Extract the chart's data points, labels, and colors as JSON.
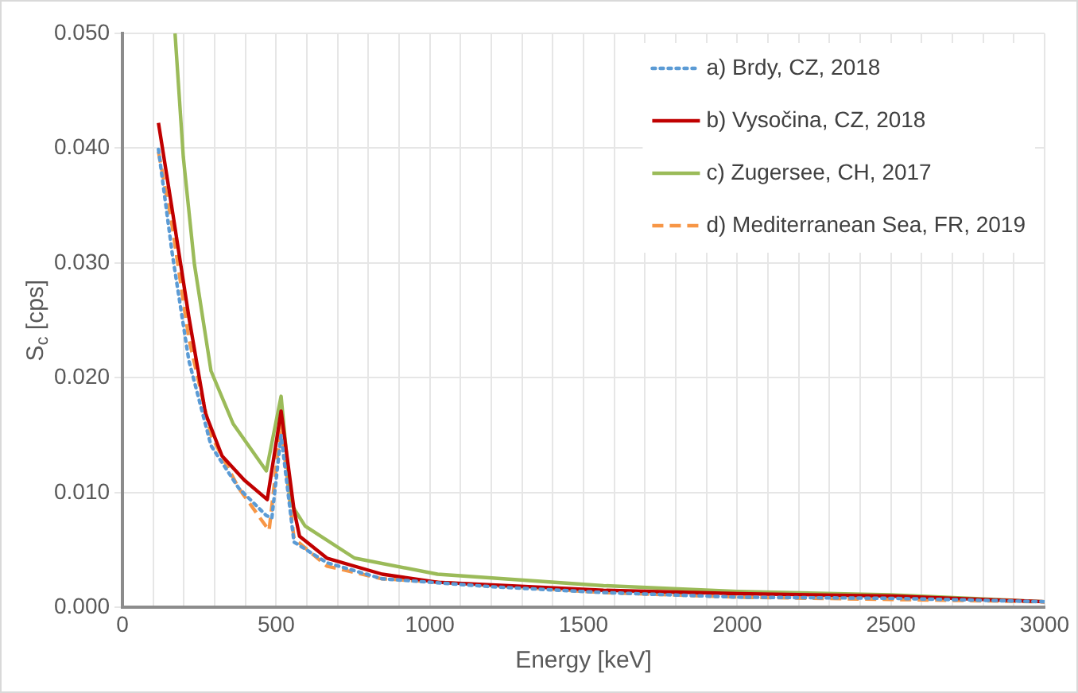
{
  "chart_data": {
    "type": "line",
    "xlabel": "Energy [keV]",
    "ylabel": "S$_{c}$ [cps]",
    "xlim": [
      0,
      3000
    ],
    "xticks": [
      0,
      {
        "value": 100,
        "label": null
      },
      {
        "value": 200,
        "label": null
      },
      {
        "value": 300,
        "label": null
      },
      {
        "value": 400,
        "label": null
      },
      500,
      {
        "value": 600,
        "label": null
      },
      {
        "value": 700,
        "label": null
      },
      {
        "value": 800,
        "label": null
      },
      {
        "value": 900,
        "label": null
      },
      1000,
      {
        "value": 1100,
        "label": null
      },
      {
        "value": 1200,
        "label": null
      },
      {
        "value": 1300,
        "label": null
      },
      {
        "value": 1400,
        "label": null
      },
      1500,
      {
        "value": 1600,
        "label": null
      },
      {
        "value": 1700,
        "label": null
      },
      {
        "value": 1800,
        "label": null
      },
      {
        "value": 1900,
        "label": null
      },
      2000,
      {
        "value": 2100,
        "label": null
      },
      {
        "value": 2200,
        "label": null
      },
      {
        "value": 2300,
        "label": null
      },
      {
        "value": 2400,
        "label": null
      },
      2500,
      {
        "value": 2600,
        "label": null
      },
      {
        "value": 2700,
        "label": null
      },
      {
        "value": 2800,
        "label": null
      },
      {
        "value": 2900,
        "label": null
      },
      3000
    ],
    "ylim": [
      0,
      0.05
    ],
    "yticks": [
      {
        "value": 0,
        "label": "0.000"
      },
      {
        "value": 0.01,
        "label": "0.010"
      },
      {
        "value": 0.02,
        "label": "0.020"
      },
      {
        "value": 0.03,
        "label": "0.030"
      },
      {
        "value": 0.04,
        "label": "0.040"
      },
      {
        "value": 0.05,
        "label": "0.050"
      }
    ],
    "grid": true,
    "legend": "top right",
    "marker": "none",
    "series": [
      {
        "name": "a) Brdy, CZ, 2018",
        "color": "#5b9bd5",
        "line_style": "dotted",
        "x": [
          117,
          162,
          216,
          288,
          378,
          468,
          486,
          516,
          558,
          665,
          845,
          1205,
          1565,
          2000,
          2500,
          3000
        ],
        "values": [
          0.0399,
          0.0308,
          0.0215,
          0.0141,
          0.0104,
          0.008,
          0.0078,
          0.015,
          0.0057,
          0.0039,
          0.0025,
          0.0018,
          0.0013,
          0.0009,
          0.0008,
          0.0005
        ]
      },
      {
        "name": "b) Vysočina, CZ, 2018",
        "color": "#c00000",
        "line_style": "solid",
        "x": [
          117,
          162,
          216,
          270,
          324,
          396,
          471,
          516,
          558,
          576,
          665,
          845,
          1025,
          1565,
          2000,
          2500,
          3000
        ],
        "values": [
          0.0422,
          0.0346,
          0.0253,
          0.0169,
          0.0132,
          0.0111,
          0.0094,
          0.0171,
          0.0085,
          0.0062,
          0.0043,
          0.0029,
          0.0022,
          0.0015,
          0.0012,
          0.001,
          0.0005
        ]
      },
      {
        "name": "c) Zugersee, CH, 2017",
        "color": "#9bbb59",
        "line_style": "solid",
        "x": [
          171,
          198,
          234,
          288,
          360,
          468,
          516,
          549,
          594,
          755,
          1025,
          1565,
          2000,
          2500,
          3000
        ],
        "values": [
          0.05,
          0.0392,
          0.0299,
          0.0206,
          0.016,
          0.0119,
          0.0184,
          0.009,
          0.0071,
          0.0043,
          0.0029,
          0.0019,
          0.0014,
          0.0011,
          0.0005
        ]
      },
      {
        "name": "d) Mediterranean Sea, FR, 2019",
        "color": "#f79646",
        "line_style": "dashed",
        "x": [
          117,
          162,
          216,
          288,
          378,
          477,
          516,
          558,
          665,
          845,
          1565,
          2000,
          2500,
          3000
        ],
        "values": [
          0.0397,
          0.0332,
          0.0234,
          0.015,
          0.0104,
          0.0067,
          0.016,
          0.006,
          0.0036,
          0.0025,
          0.0013,
          0.0009,
          0.0007,
          0.0005
        ]
      }
    ]
  }
}
